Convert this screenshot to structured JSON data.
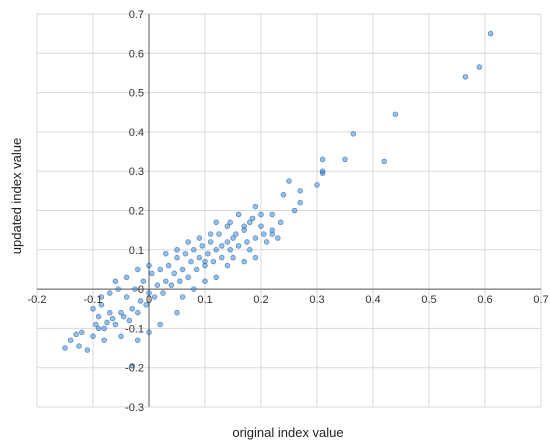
{
  "chart_data": {
    "type": "scatter",
    "title": "",
    "xlabel": "original index value",
    "ylabel": "updated index value",
    "xlim": [
      -0.2,
      0.7
    ],
    "ylim": [
      -0.3,
      0.7
    ],
    "grid": true,
    "legend": "none",
    "point_color": "#2f7fd3",
    "point_edge_color": "#1f5fa8",
    "x_ticks": [
      "-0.2",
      "-0.1",
      "0",
      "0.1",
      "0.2",
      "0.3",
      "0.4",
      "0.5",
      "0.6",
      "0.7"
    ],
    "y_ticks": [
      "-0.3",
      "-0.2",
      "-0.1",
      "0",
      "0.1",
      "0.2",
      "0.3",
      "0.4",
      "0.5",
      "0.6",
      "0.7"
    ],
    "series": [
      {
        "points": [
          [
            0.61,
            0.65
          ],
          [
            0.59,
            0.565
          ],
          [
            0.565,
            0.54
          ],
          [
            0.44,
            0.445
          ],
          [
            0.365,
            0.395
          ],
          [
            0.42,
            0.325
          ],
          [
            0.35,
            0.33
          ],
          [
            0.31,
            0.33
          ],
          [
            0.31,
            0.295
          ],
          [
            0.31,
            0.3
          ],
          [
            0.3,
            0.265
          ],
          [
            0.27,
            0.25
          ],
          [
            0.25,
            0.275
          ],
          [
            0.27,
            0.22
          ],
          [
            0.24,
            0.24
          ],
          [
            0.26,
            0.2
          ],
          [
            0.22,
            0.19
          ],
          [
            0.19,
            0.21
          ],
          [
            0.23,
            0.13
          ],
          [
            0.22,
            0.14
          ],
          [
            0.2,
            0.16
          ],
          [
            0.21,
            0.12
          ],
          [
            0.18,
            0.17
          ],
          [
            0.17,
            0.15
          ],
          [
            0.16,
            0.19
          ],
          [
            0.15,
            0.13
          ],
          [
            0.18,
            0.1
          ],
          [
            0.14,
            0.16
          ],
          [
            0.12,
            0.17
          ],
          [
            0.11,
            0.14
          ],
          [
            0.19,
            0.08
          ],
          [
            0.17,
            0.07
          ],
          [
            0.15,
            0.08
          ],
          [
            0.1,
            0.02
          ],
          [
            0.12,
            0.03
          ],
          [
            -0.03,
            -0.195
          ],
          [
            -0.11,
            -0.155
          ],
          [
            -0.125,
            -0.145
          ],
          [
            -0.15,
            -0.15
          ],
          [
            -0.14,
            -0.13
          ],
          [
            -0.12,
            -0.11
          ],
          [
            -0.13,
            -0.115
          ],
          [
            -0.1,
            -0.12
          ],
          [
            -0.09,
            -0.1
          ],
          [
            -0.08,
            -0.13
          ],
          [
            -0.05,
            -0.12
          ],
          [
            -0.1,
            -0.05
          ],
          [
            -0.085,
            -0.04
          ],
          [
            -0.07,
            -0.06
          ],
          [
            -0.02,
            -0.13
          ],
          [
            0.0,
            -0.11
          ],
          [
            0.02,
            -0.09
          ],
          [
            0.05,
            -0.06
          ],
          [
            0.08,
            0.0
          ],
          [
            0.06,
            -0.02
          ],
          [
            0.1,
            0.07
          ],
          [
            -0.06,
            0.02
          ],
          [
            -0.04,
            0.03
          ],
          [
            -0.02,
            0.05
          ],
          [
            0.0,
            0.06
          ],
          [
            0.03,
            0.09
          ],
          [
            0.05,
            0.1
          ],
          [
            0.07,
            0.12
          ],
          [
            0.09,
            0.13
          ],
          [
            0.13,
            0.11
          ],
          [
            0.14,
            0.06
          ],
          [
            -0.09,
            -0.07
          ],
          [
            -0.075,
            -0.085
          ],
          [
            -0.06,
            -0.09
          ],
          [
            -0.045,
            -0.07
          ],
          [
            -0.03,
            -0.05
          ],
          [
            -0.015,
            -0.03
          ],
          [
            0.0,
            -0.01
          ],
          [
            0.015,
            0.01
          ],
          [
            0.03,
            0.02
          ],
          [
            0.045,
            0.04
          ],
          [
            0.06,
            0.05
          ],
          [
            0.075,
            0.07
          ],
          [
            0.09,
            0.08
          ],
          [
            0.105,
            0.09
          ],
          [
            0.12,
            0.1
          ],
          [
            -0.085,
            -0.02
          ],
          [
            -0.07,
            -0.01
          ],
          [
            -0.055,
            0.0
          ],
          [
            -0.04,
            -0.02
          ],
          [
            -0.025,
            0.0
          ],
          [
            -0.01,
            0.02
          ],
          [
            0.005,
            0.04
          ],
          [
            0.02,
            0.05
          ],
          [
            0.035,
            0.06
          ],
          [
            0.05,
            0.08
          ],
          [
            0.065,
            0.09
          ],
          [
            0.08,
            0.1
          ],
          [
            0.095,
            0.11
          ],
          [
            0.11,
            0.12
          ],
          [
            0.125,
            0.14
          ],
          [
            0.14,
            0.12
          ],
          [
            -0.095,
            -0.09
          ],
          [
            -0.08,
            -0.1
          ],
          [
            -0.065,
            -0.075
          ],
          [
            -0.05,
            -0.06
          ],
          [
            -0.035,
            -0.08
          ],
          [
            -0.02,
            -0.06
          ],
          [
            -0.005,
            -0.04
          ],
          [
            0.01,
            -0.02
          ],
          [
            0.025,
            -0.01
          ],
          [
            0.04,
            0.01
          ],
          [
            0.055,
            0.02
          ],
          [
            0.07,
            0.03
          ],
          [
            0.085,
            0.05
          ],
          [
            0.1,
            0.06
          ],
          [
            0.115,
            0.07
          ],
          [
            0.13,
            0.08
          ],
          [
            0.145,
            0.1
          ],
          [
            0.16,
            0.11
          ],
          [
            0.175,
            0.12
          ],
          [
            0.19,
            0.13
          ],
          [
            0.205,
            0.14
          ],
          [
            0.22,
            0.15
          ],
          [
            0.235,
            0.17
          ],
          [
            0.2,
            0.19
          ],
          [
            0.185,
            0.18
          ],
          [
            0.17,
            0.16
          ],
          [
            0.155,
            0.14
          ],
          [
            0.145,
            0.17
          ]
        ]
      }
    ]
  }
}
